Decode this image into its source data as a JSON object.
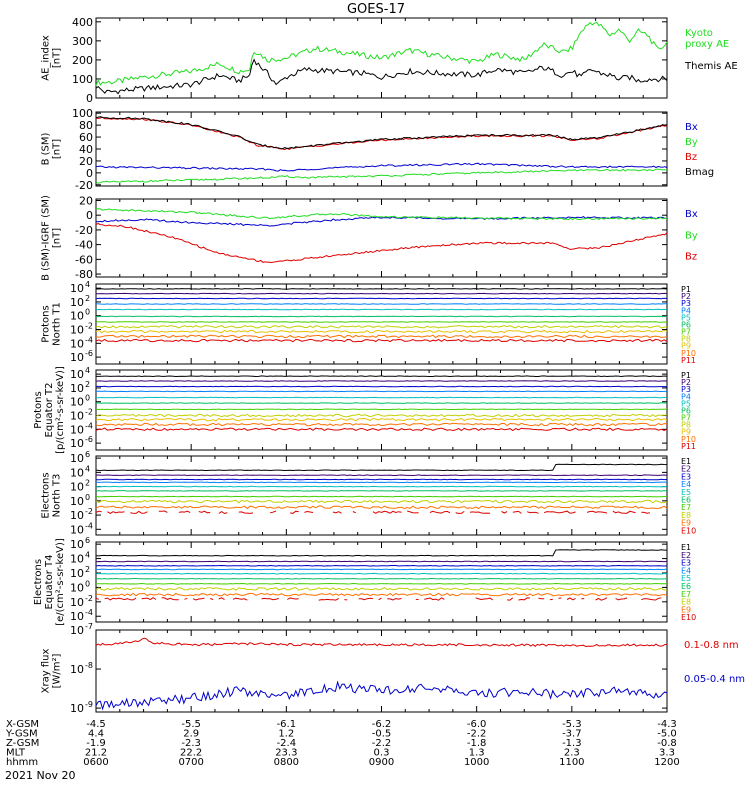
{
  "title": "GOES-17",
  "date_label": "2021 Nov 20",
  "colors": {
    "black": "#000000",
    "green": "#22dd22",
    "blue": "#0000cc",
    "red": "#dd0000",
    "P": [
      "#000000",
      "#3a0070",
      "#0000cc",
      "#0080ff",
      "#00c0c0",
      "#00c060",
      "#40d000",
      "#c0d000",
      "#e8c000",
      "#ff7000",
      "#dd0000"
    ],
    "E": [
      "#000000",
      "#3a0070",
      "#0000cc",
      "#0080ff",
      "#00c0c0",
      "#00c060",
      "#40d000",
      "#c0d000",
      "#ff7000",
      "#dd0000"
    ]
  },
  "bottom_axis": {
    "rows": [
      {
        "label": "X-GSM",
        "values": [
          "-4.5",
          "-5.5",
          "-6.1",
          "-6.2",
          "-6.0",
          "-5.3",
          "-4.3"
        ]
      },
      {
        "label": "Y-GSM",
        "values": [
          "4.4",
          "2.9",
          "1.2",
          "-0.5",
          "-2.2",
          "-3.7",
          "-5.0"
        ]
      },
      {
        "label": "Z-GSM",
        "values": [
          "-1.9",
          "-2.3",
          "-2.4",
          "-2.2",
          "-1.8",
          "-1.3",
          "-0.8"
        ]
      },
      {
        "label": "MLT",
        "values": [
          "21.2",
          "22.2",
          "23.3",
          "0.3",
          "1.3",
          "2.3",
          "3.3"
        ]
      },
      {
        "label": "hhmm",
        "values": [
          "0600",
          "0700",
          "0800",
          "0900",
          "1000",
          "1100",
          "1200"
        ]
      }
    ]
  },
  "chart_data": [
    {
      "type": "line",
      "ylabel": [
        "AE_index",
        "[nT]"
      ],
      "yticks": [
        {
          "label": "400",
          "v": 400
        },
        {
          "label": "300",
          "v": 300
        },
        {
          "label": "200",
          "v": 200
        },
        {
          "label": "100",
          "v": 100
        },
        {
          "label": "0",
          "v": 0
        }
      ],
      "ylim": [
        0,
        420
      ],
      "log": false,
      "series": [
        {
          "name": "Kyoto proxy AE",
          "color": "green",
          "x": [
            6.0,
            6.2,
            6.5,
            7.0,
            7.3,
            7.5,
            7.62,
            7.65,
            7.7,
            7.8,
            8.0,
            8.3,
            8.6,
            9.0,
            9.3,
            9.6,
            10.0,
            10.2,
            10.5,
            10.7,
            10.9,
            11.0,
            11.1,
            11.2,
            11.3,
            11.4,
            11.5,
            11.6,
            11.7,
            11.8,
            11.9,
            12.0
          ],
          "y": [
            80,
            85,
            110,
            140,
            180,
            140,
            150,
            250,
            240,
            200,
            210,
            260,
            240,
            210,
            250,
            220,
            190,
            230,
            200,
            280,
            240,
            260,
            350,
            400,
            380,
            330,
            360,
            300,
            350,
            330,
            250,
            290
          ]
        },
        {
          "name": "Themis AE",
          "color": "black",
          "x": [
            6.0,
            6.1,
            6.3,
            6.5,
            7.0,
            7.3,
            7.5,
            7.62,
            7.65,
            7.7,
            7.8,
            7.9,
            8.0,
            8.2,
            8.5,
            8.8,
            9.0,
            9.3,
            9.6,
            10.0,
            10.2,
            10.5,
            10.7,
            10.9,
            11.0,
            11.1,
            11.2,
            11.3,
            11.4,
            11.5,
            11.6,
            11.7,
            11.8,
            12.0
          ],
          "y": [
            60,
            30,
            40,
            50,
            70,
            120,
            90,
            120,
            210,
            180,
            130,
            70,
            110,
            150,
            140,
            130,
            110,
            140,
            130,
            120,
            150,
            130,
            160,
            120,
            140,
            110,
            150,
            130,
            120,
            100,
            110,
            90,
            100,
            100
          ]
        }
      ]
    },
    {
      "type": "line",
      "ylabel": [
        "B (SM)",
        "[nT]"
      ],
      "yticks": [
        {
          "label": "100",
          "v": 100
        },
        {
          "label": "80",
          "v": 80
        },
        {
          "label": "60",
          "v": 60
        },
        {
          "label": "40",
          "v": 40
        },
        {
          "label": "20",
          "v": 20
        },
        {
          "label": "0",
          "v": 0
        },
        {
          "label": "-20",
          "v": -20
        }
      ],
      "ylim": [
        -22,
        102
      ],
      "log": false,
      "series": [
        {
          "name": "Bx",
          "color": "blue",
          "x": [
            6.0,
            7.0,
            7.8,
            8.0,
            8.2,
            9.0,
            10.0,
            11.0,
            12.0
          ],
          "y": [
            10,
            8,
            6,
            3,
            6,
            12,
            15,
            10,
            10
          ]
        },
        {
          "name": "By",
          "color": "green",
          "x": [
            6.0,
            7.0,
            7.8,
            8.0,
            8.2,
            9.0,
            10.0,
            11.0,
            12.0
          ],
          "y": [
            -16,
            -12,
            -8,
            -6,
            -8,
            -5,
            0,
            4,
            5
          ]
        },
        {
          "name": "Bz",
          "color": "red",
          "x": [
            6.0,
            6.5,
            7.0,
            7.5,
            7.7,
            8.0,
            8.3,
            9.0,
            10.0,
            10.8,
            11.0,
            11.3,
            12.0
          ],
          "y": [
            92,
            90,
            80,
            60,
            46,
            40,
            45,
            55,
            62,
            62,
            55,
            58,
            80
          ]
        },
        {
          "name": "Bmag",
          "color": "black",
          "x": [
            6.0,
            6.5,
            7.0,
            7.5,
            7.7,
            8.0,
            8.3,
            9.0,
            10.0,
            10.8,
            11.0,
            11.3,
            12.0
          ],
          "y": [
            93,
            91,
            81,
            61,
            47,
            41,
            46,
            56,
            63,
            63,
            56,
            59,
            81
          ]
        }
      ]
    },
    {
      "type": "line",
      "ylabel": [
        "B (SM)-IGRF (SM)",
        "[nT]"
      ],
      "yticks": [
        {
          "label": "20",
          "v": 20
        },
        {
          "label": "0",
          "v": 0
        },
        {
          "label": "-20",
          "v": -20
        },
        {
          "label": "-40",
          "v": -40
        },
        {
          "label": "-60",
          "v": -60
        },
        {
          "label": "-80",
          "v": -80
        }
      ],
      "ylim": [
        -84,
        22
      ],
      "log": false,
      "series": [
        {
          "name": "Bx",
          "color": "blue",
          "x": [
            6.0,
            6.5,
            7.0,
            7.8,
            8.0,
            8.5,
            9.0,
            10.0,
            11.0,
            12.0
          ],
          "y": [
            -8,
            -6,
            -10,
            -14,
            -12,
            -6,
            -3,
            -5,
            -3,
            -4
          ]
        },
        {
          "name": "By",
          "color": "green",
          "x": [
            6.0,
            6.5,
            7.0,
            7.8,
            8.0,
            8.5,
            9.0,
            10.0,
            11.0,
            12.0
          ],
          "y": [
            8,
            6,
            4,
            -4,
            -2,
            2,
            -2,
            -4,
            -5,
            -4
          ]
        },
        {
          "name": "Bz",
          "color": "red",
          "x": [
            6.0,
            6.3,
            6.8,
            7.3,
            7.8,
            8.0,
            8.5,
            9.0,
            9.5,
            10.0,
            10.8,
            11.0,
            11.3,
            12.0
          ],
          "y": [
            -12,
            -15,
            -30,
            -52,
            -64,
            -62,
            -55,
            -48,
            -42,
            -38,
            -38,
            -46,
            -44,
            -25
          ]
        }
      ]
    },
    {
      "type": "line",
      "ylabel": [
        "Protons",
        "North T1"
      ],
      "yticks": [
        {
          "label": "10",
          "exp": "4",
          "v": 4
        },
        {
          "label": "10",
          "exp": "2",
          "v": 2
        },
        {
          "label": "10",
          "exp": "0",
          "v": 0
        },
        {
          "label": "10",
          "exp": "-2",
          "v": -2
        },
        {
          "label": "10",
          "exp": "-4",
          "v": -4
        },
        {
          "label": "10",
          "exp": "-6",
          "v": -6
        }
      ],
      "ylim": [
        -7,
        4.6
      ],
      "log": true,
      "channels": [
        "P1",
        "P2",
        "P3",
        "P4",
        "P5",
        "P6",
        "P7",
        "P8",
        "P9",
        "P10",
        "P11"
      ],
      "levels": [
        3.9,
        3.2,
        2.5,
        1.7,
        0.9,
        -0.1,
        -0.9,
        -1.6,
        -2.3,
        -3.0,
        -3.6
      ]
    },
    {
      "type": "line",
      "ylabel": [
        "Protons",
        "Equator T2",
        "[p/(cm²-s-sr-keV)]"
      ],
      "yticks": [
        {
          "label": "10",
          "exp": "4",
          "v": 4
        },
        {
          "label": "10",
          "exp": "2",
          "v": 2
        },
        {
          "label": "10",
          "exp": "0",
          "v": 0
        },
        {
          "label": "10",
          "exp": "-2",
          "v": -2
        },
        {
          "label": "10",
          "exp": "-4",
          "v": -4
        },
        {
          "label": "10",
          "exp": "-6",
          "v": -6
        }
      ],
      "ylim": [
        -7,
        4.6
      ],
      "log": true,
      "channels": [
        "P1",
        "P2",
        "P3",
        "P4",
        "P5",
        "P6",
        "P7",
        "P8",
        "P9",
        "P10",
        "P11"
      ],
      "levels": [
        3.7,
        3.0,
        2.2,
        1.5,
        0.6,
        -0.2,
        -1.1,
        -2.0,
        -2.6,
        -3.3,
        -4.0
      ]
    },
    {
      "type": "line",
      "ylabel": [
        "Electrons",
        "North T3"
      ],
      "yticks": [
        {
          "label": "10",
          "exp": "6",
          "v": 6
        },
        {
          "label": "10",
          "exp": "4",
          "v": 4
        },
        {
          "label": "10",
          "exp": "2",
          "v": 2
        },
        {
          "label": "10",
          "exp": "0",
          "v": 0
        },
        {
          "label": "10",
          "exp": "-2",
          "v": -2
        },
        {
          "label": "10",
          "exp": "-4",
          "v": -4
        }
      ],
      "ylim": [
        -4.8,
        6.3
      ],
      "log": true,
      "channels": [
        "E1",
        "E2",
        "E3",
        "E4",
        "E5",
        "E6",
        "E7",
        "E8",
        "E9",
        "E10"
      ],
      "levels": [
        4.3,
        3.6,
        3.0,
        2.6,
        2.0,
        1.4,
        0.6,
        -0.1,
        -0.9,
        -1.6
      ]
    },
    {
      "type": "line",
      "ylabel": [
        "Electrons",
        "Equator T4",
        "[e/(cm²-s-sr-keV)]"
      ],
      "yticks": [
        {
          "label": "10",
          "exp": "6",
          "v": 6
        },
        {
          "label": "10",
          "exp": "4",
          "v": 4
        },
        {
          "label": "10",
          "exp": "2",
          "v": 2
        },
        {
          "label": "10",
          "exp": "0",
          "v": 0
        },
        {
          "label": "10",
          "exp": "-2",
          "v": -2
        },
        {
          "label": "10",
          "exp": "-4",
          "v": -4
        }
      ],
      "ylim": [
        -4.8,
        6.3
      ],
      "log": true,
      "channels": [
        "E1",
        "E2",
        "E3",
        "E4",
        "E5",
        "E6",
        "E7",
        "E8",
        "E9",
        "E10"
      ],
      "levels": [
        4.4,
        3.6,
        3.0,
        2.5,
        1.9,
        1.2,
        0.5,
        -0.2,
        -1.0,
        -1.6
      ]
    },
    {
      "type": "line",
      "ylabel": [
        "Xray flux",
        "[W/m²]"
      ],
      "yticks": [
        {
          "label": "10",
          "exp": "-7",
          "v": -7
        },
        {
          "label": "10",
          "exp": "-8",
          "v": -8
        },
        {
          "label": "10",
          "exp": "-9",
          "v": -9
        }
      ],
      "ylim": [
        -9.1,
        -7
      ],
      "log": true,
      "series": [
        {
          "name": "0.1-0.8 nm",
          "color": "red",
          "x": [
            6.0,
            6.4,
            6.5,
            6.6,
            7.0,
            7.5,
            8.0,
            9.0,
            10.0,
            11.0,
            12.0
          ],
          "y": [
            -7.38,
            -7.32,
            -7.2,
            -7.33,
            -7.38,
            -7.35,
            -7.37,
            -7.38,
            -7.38,
            -7.4,
            -7.38
          ]
        },
        {
          "name": "0.05-0.4 nm",
          "color": "blue",
          "x": [
            6.0,
            6.5,
            7.0,
            7.5,
            8.0,
            8.5,
            9.0,
            9.5,
            10.0,
            10.5,
            11.0,
            11.5,
            12.0
          ],
          "y": [
            -8.95,
            -8.85,
            -8.75,
            -8.55,
            -8.7,
            -8.45,
            -8.55,
            -8.5,
            -8.6,
            -8.6,
            -8.65,
            -8.55,
            -8.7
          ]
        }
      ]
    }
  ],
  "x_range": [
    6.0,
    12.0
  ]
}
